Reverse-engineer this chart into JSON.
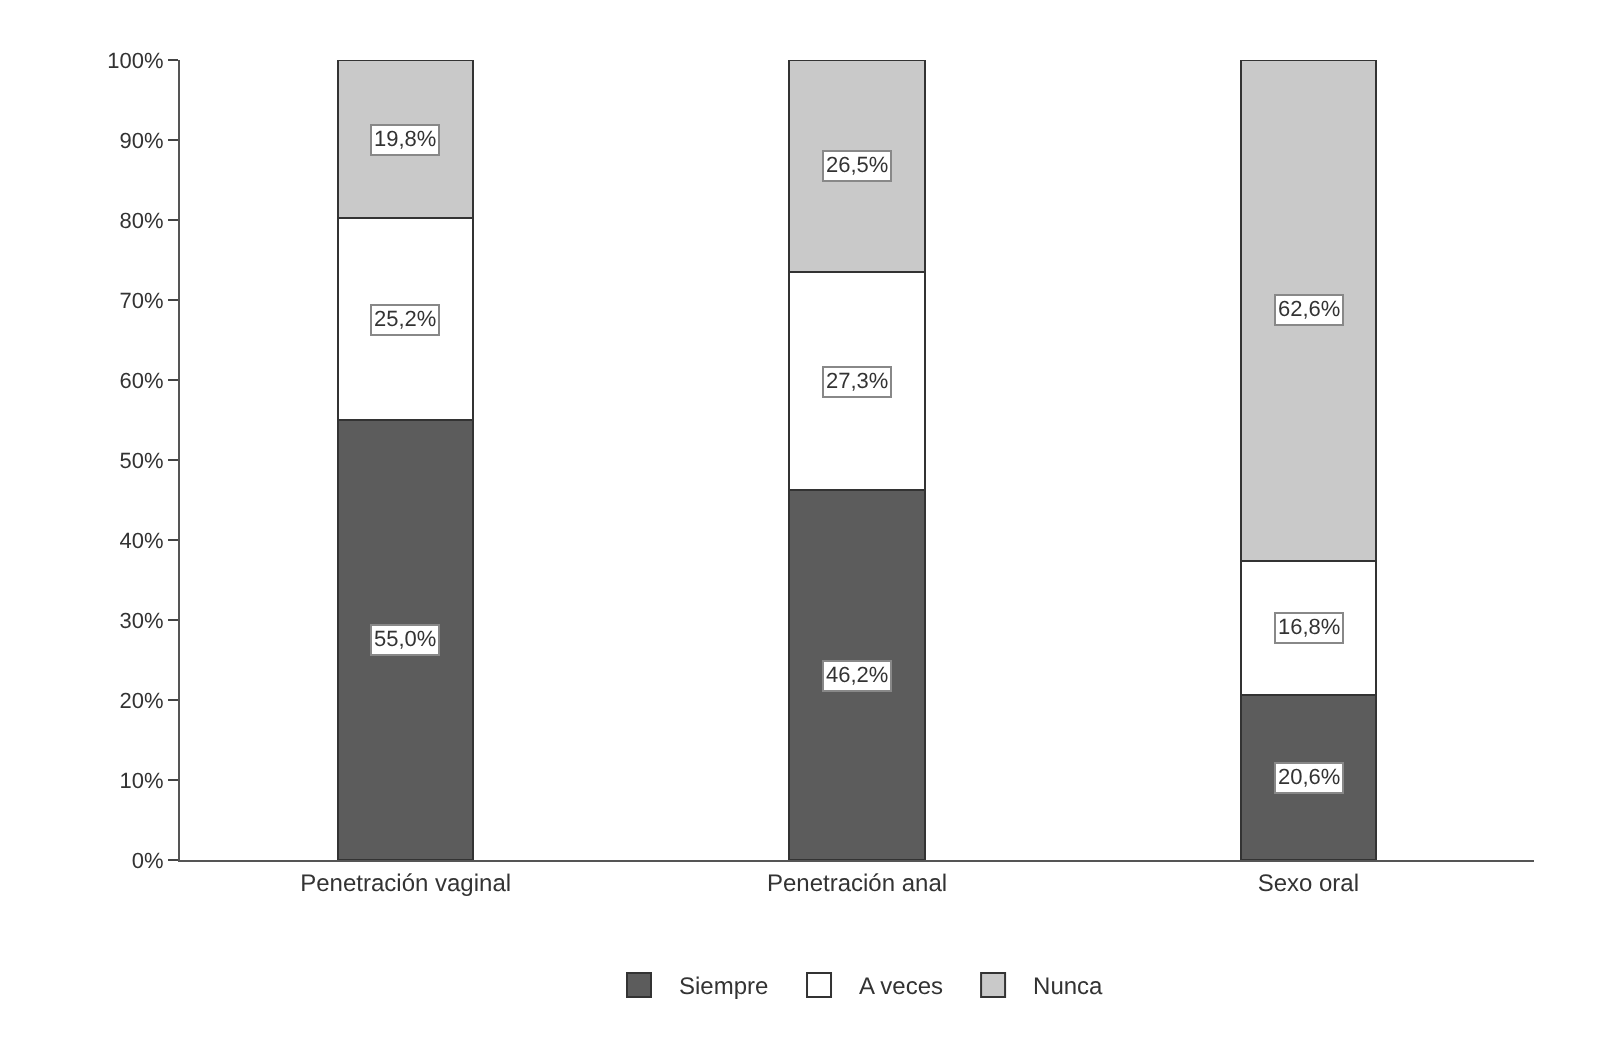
{
  "chart_data": {
    "type": "bar",
    "stacked": true,
    "categories": [
      "Penetración vaginal",
      "Penetración anal",
      "Sexo oral"
    ],
    "series": [
      {
        "name": "Siempre",
        "color": "#5c5c5c",
        "values": [
          55.0,
          46.2,
          20.6
        ],
        "value_labels": [
          "55,0%",
          "46,2%",
          "20,6%"
        ]
      },
      {
        "name": "A veces",
        "color": "#ffffff",
        "values": [
          25.2,
          27.3,
          16.8
        ],
        "value_labels": [
          "25,2%",
          "27,3%",
          "16,8%"
        ]
      },
      {
        "name": "Nunca",
        "color": "#c9c9c9",
        "values": [
          19.8,
          26.5,
          62.6
        ],
        "value_labels": [
          "19,8%",
          "26,5%",
          "62,6%"
        ]
      }
    ],
    "ylim": [
      0,
      100
    ],
    "yticks": [
      {
        "value": 0,
        "label": "0%"
      },
      {
        "value": 10,
        "label": "10%"
      },
      {
        "value": 20,
        "label": "20%"
      },
      {
        "value": 30,
        "label": "30%"
      },
      {
        "value": 40,
        "label": "40%"
      },
      {
        "value": 50,
        "label": "50%"
      },
      {
        "value": 60,
        "label": "60%"
      },
      {
        "value": 70,
        "label": "70%"
      },
      {
        "value": 80,
        "label": "80%"
      },
      {
        "value": 90,
        "label": "90%"
      },
      {
        "value": 100,
        "label": "100%"
      }
    ],
    "legend": "bottom"
  }
}
